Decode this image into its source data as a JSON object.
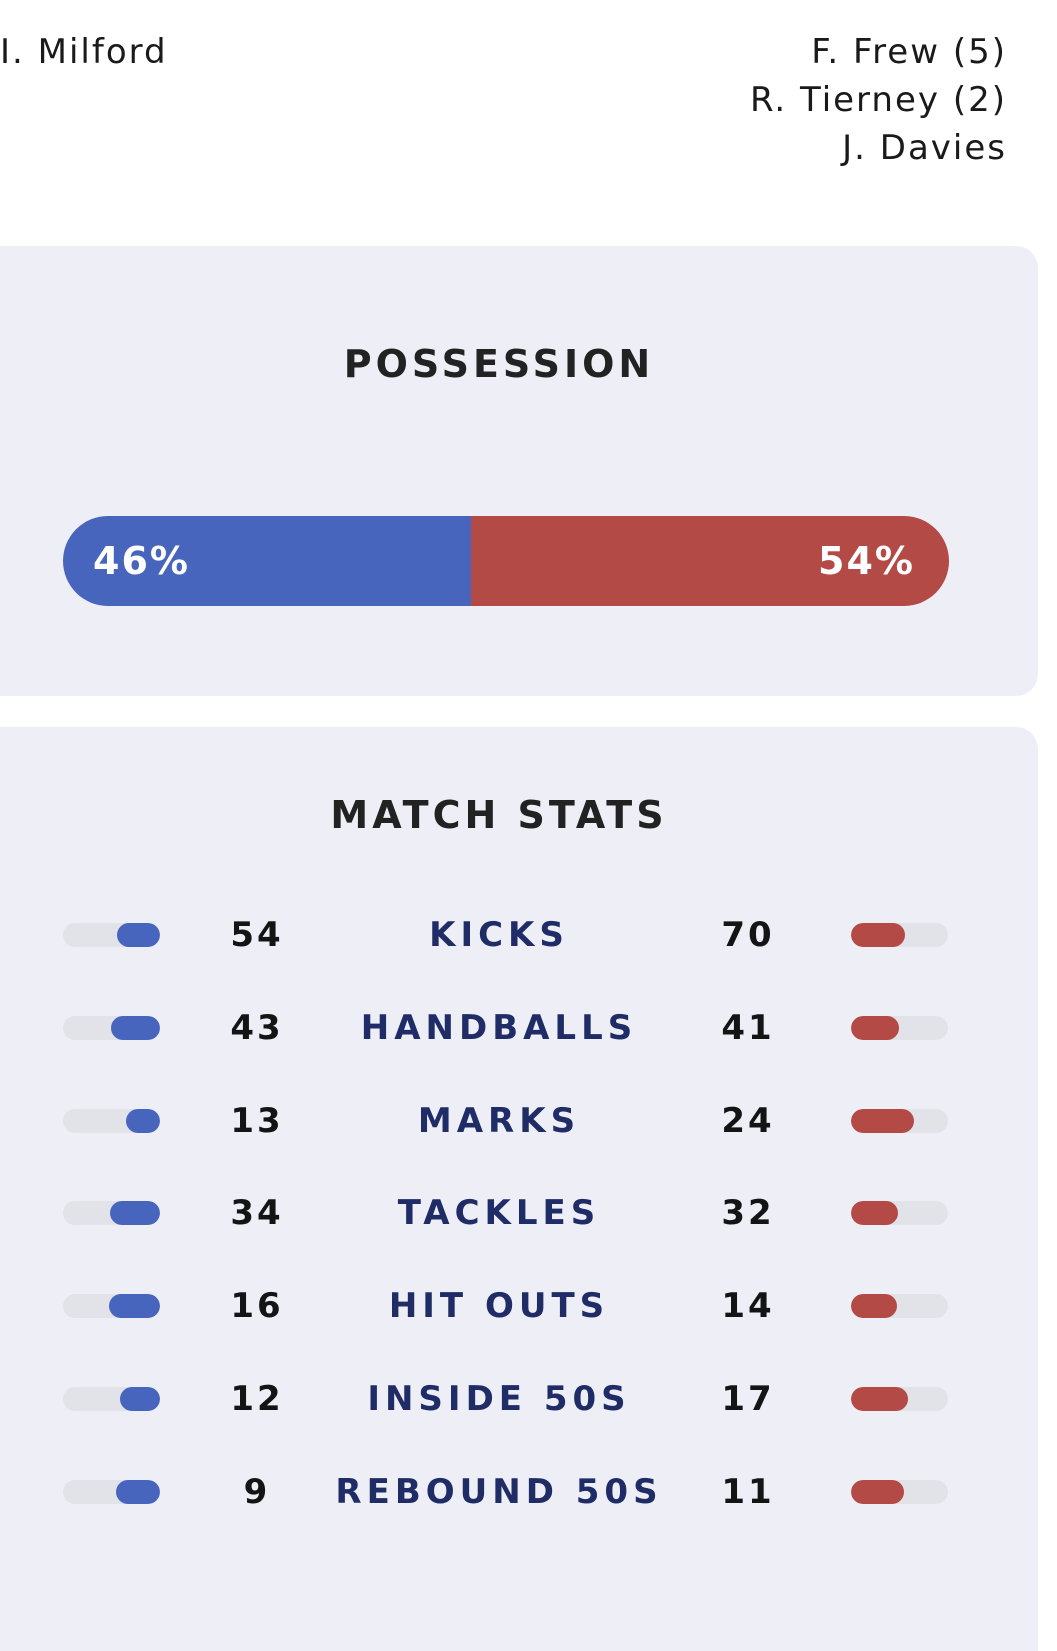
{
  "scorers": {
    "home": [
      "I. Milford"
    ],
    "away": [
      "F. Frew (5)",
      "R. Tierney (2)",
      "J. Davies"
    ]
  },
  "possession": {
    "title": "POSSESSION",
    "home_label": "46%",
    "away_label": "54%",
    "home_percent": 46,
    "away_percent": 54,
    "colors": {
      "home": "#4765bd",
      "away": "#b44a46"
    }
  },
  "match_stats": {
    "title": "MATCH STATS",
    "rows": [
      {
        "label": "KICKS",
        "home": "54",
        "away": "70",
        "home_fill": 0.44,
        "away_fill": 0.56
      },
      {
        "label": "HANDBALLS",
        "home": "43",
        "away": "41",
        "home_fill": 0.51,
        "away_fill": 0.49
      },
      {
        "label": "MARKS",
        "home": "13",
        "away": "24",
        "home_fill": 0.35,
        "away_fill": 0.65
      },
      {
        "label": "TACKLES",
        "home": "34",
        "away": "32",
        "home_fill": 0.52,
        "away_fill": 0.48
      },
      {
        "label": "HIT OUTS",
        "home": "16",
        "away": "14",
        "home_fill": 0.53,
        "away_fill": 0.47
      },
      {
        "label": "INSIDE 50S",
        "home": "12",
        "away": "17",
        "home_fill": 0.41,
        "away_fill": 0.59
      },
      {
        "label": "REBOUND 50S",
        "home": "9",
        "away": "11",
        "home_fill": 0.45,
        "away_fill": 0.55
      }
    ]
  }
}
